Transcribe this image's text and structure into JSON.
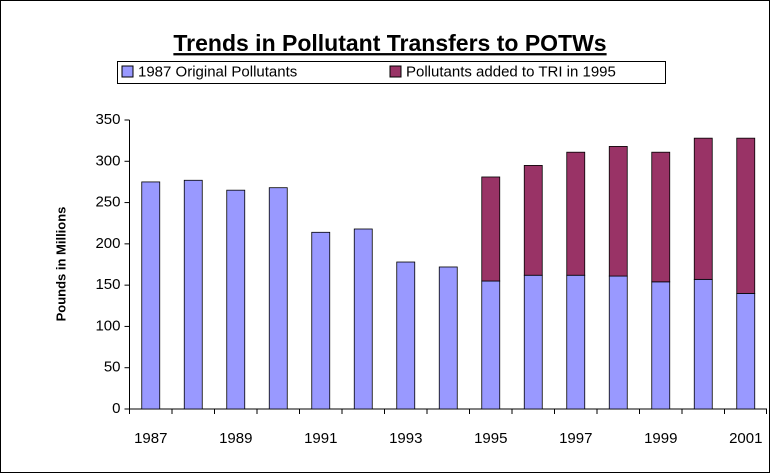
{
  "chart_data": {
    "type": "stacked-bar",
    "title": "Trends in Pollutant Transfers to POTWs",
    "y_label": "Pounds in Millions",
    "categories": [
      "1987",
      null,
      "1989",
      null,
      "1991",
      null,
      "1993",
      null,
      "1995",
      null,
      "1997",
      null,
      "1999",
      null,
      "2001"
    ],
    "series": [
      {
        "name": "1987 Original Pollutants",
        "color": "#9999ff",
        "values": [
          275,
          277,
          265,
          268,
          214,
          218,
          178,
          172,
          155,
          162,
          162,
          161,
          154,
          157,
          140
        ]
      },
      {
        "name": "Pollutants added to TRI in 1995",
        "color": "#993366",
        "values": [
          null,
          null,
          null,
          null,
          null,
          null,
          null,
          null,
          126,
          133,
          149,
          157,
          157,
          171,
          188
        ]
      }
    ],
    "ylim": [
      0,
      350
    ],
    "yticks": [
      0,
      50,
      100,
      150,
      200,
      250,
      300,
      350
    ]
  }
}
